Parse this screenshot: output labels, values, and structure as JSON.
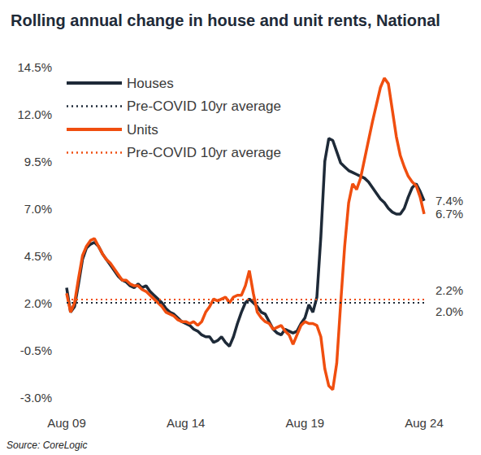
{
  "chart_data": {
    "type": "line",
    "title": "Rolling annual change in house and unit rents, National",
    "source": "Source: CoreLogic",
    "categories": [
      "Aug 09",
      null,
      null,
      null,
      null,
      null,
      null,
      null,
      null,
      null,
      null,
      null,
      null,
      null,
      null,
      null,
      null,
      null,
      null,
      null,
      null,
      null,
      null,
      null,
      null,
      null,
      null,
      null,
      null,
      null,
      "Aug 14",
      null,
      null,
      null,
      null,
      null,
      null,
      null,
      null,
      null,
      null,
      null,
      null,
      null,
      null,
      null,
      null,
      null,
      null,
      null,
      null,
      null,
      null,
      null,
      null,
      null,
      null,
      null,
      null,
      null,
      "Aug 19",
      null,
      null,
      null,
      null,
      null,
      null,
      null,
      null,
      null,
      null,
      null,
      null,
      null,
      null,
      null,
      null,
      null,
      null,
      null,
      null,
      null,
      null,
      null,
      null,
      null,
      null,
      null,
      null,
      null,
      "Aug 24"
    ],
    "series": [
      {
        "name": "Houses",
        "type": "line",
        "color": "#1e2a38",
        "line_style": "solid",
        "end_label": "7.4%",
        "values": [
          2.8,
          1.5,
          1.8,
          3.0,
          4.3,
          4.9,
          5.1,
          5.2,
          5.0,
          4.6,
          4.3,
          4.0,
          3.7,
          3.4,
          3.2,
          3.1,
          2.9,
          2.8,
          3.0,
          2.8,
          2.9,
          2.6,
          2.4,
          2.2,
          2.0,
          1.7,
          1.5,
          1.4,
          1.2,
          1.0,
          0.9,
          0.8,
          0.6,
          0.5,
          0.3,
          0.2,
          0.2,
          -0.1,
          0.0,
          0.2,
          -0.1,
          -0.3,
          0.2,
          0.9,
          1.5,
          2.0,
          2.2,
          2.0,
          1.8,
          1.5,
          1.4,
          1.0,
          0.6,
          0.4,
          0.3,
          0.6,
          0.5,
          0.4,
          0.5,
          0.9,
          1.2,
          1.9,
          1.5,
          2.3,
          5.5,
          9.5,
          10.7,
          10.6,
          10.0,
          9.4,
          9.2,
          9.0,
          8.9,
          8.8,
          8.7,
          8.6,
          8.4,
          8.1,
          7.8,
          7.5,
          7.3,
          7.0,
          6.8,
          6.7,
          6.7,
          7.0,
          7.6,
          8.1,
          8.3,
          7.9,
          7.4
        ]
      },
      {
        "name": "Pre-COVID 10yr average",
        "type": "hline",
        "color": "#1e2a38",
        "line_style": "dotted",
        "y": 2.0,
        "label": "2.0%"
      },
      {
        "name": "Units",
        "type": "line",
        "color": "#f04e0f",
        "line_style": "solid",
        "end_label": "6.7%",
        "values": [
          2.5,
          1.5,
          2.0,
          3.3,
          4.5,
          5.0,
          5.3,
          5.4,
          5.0,
          4.6,
          4.3,
          4.1,
          3.8,
          3.5,
          3.2,
          3.2,
          3.0,
          2.9,
          2.9,
          2.7,
          2.6,
          2.4,
          2.2,
          2.0,
          1.8,
          1.5,
          1.4,
          1.3,
          1.1,
          1.0,
          1.0,
          0.9,
          1.0,
          0.8,
          1.0,
          1.5,
          1.8,
          2.2,
          2.1,
          2.2,
          2.3,
          2.0,
          2.3,
          2.4,
          2.4,
          2.9,
          3.7,
          2.5,
          1.5,
          1.2,
          1.0,
          0.9,
          0.6,
          0.7,
          0.8,
          0.5,
          0.3,
          -0.2,
          0.3,
          0.8,
          1.0,
          0.9,
          0.9,
          0.8,
          0.2,
          -1.5,
          -2.4,
          -2.6,
          -1.2,
          2.0,
          5.0,
          7.3,
          8.3,
          8.0,
          8.6,
          9.6,
          10.6,
          11.6,
          12.5,
          13.4,
          13.9,
          13.6,
          12.2,
          10.8,
          9.8,
          9.2,
          8.7,
          8.4,
          8.2,
          7.6,
          6.7
        ]
      },
      {
        "name": "Pre-COVID 10yr average",
        "type": "hline",
        "color": "#f04e0f",
        "line_style": "dotted",
        "y": 2.2,
        "label": "2.2%"
      }
    ],
    "ylim": [
      -3.0,
      14.5
    ],
    "yticks": [
      {
        "value": -3.0,
        "label": "-3.0%"
      },
      {
        "value": -0.5,
        "label": "-0.5%"
      },
      {
        "value": 2.0,
        "label": "2.0%"
      },
      {
        "value": 4.5,
        "label": "4.5%"
      },
      {
        "value": 7.0,
        "label": "7.0%"
      },
      {
        "value": 9.5,
        "label": "9.5%"
      },
      {
        "value": 12.0,
        "label": "12.0%"
      },
      {
        "value": 14.5,
        "label": "14.5%"
      }
    ],
    "grid": false,
    "legend": "upper left"
  }
}
